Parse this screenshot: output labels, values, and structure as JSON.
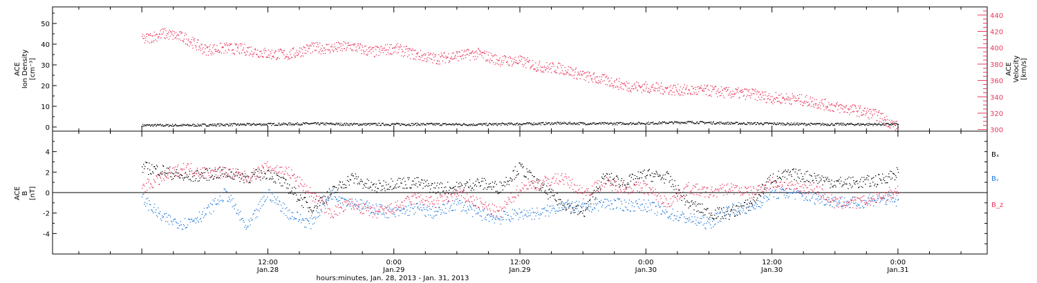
{
  "chart_data": [
    {
      "type": "scatter",
      "panel": "top",
      "ylabel_left": [
        "ACE",
        "Ion Density",
        "[cm⁻³]"
      ],
      "ylabel_right": [
        "ACE",
        "Velocity",
        "[km/s]"
      ],
      "ylim_left": [
        -2,
        58
      ],
      "yticks_left": [
        "0",
        "10",
        "20",
        "30",
        "40",
        "50"
      ],
      "ylim_right": [
        298,
        450
      ],
      "yticks_right": [
        "300",
        "320",
        "340",
        "360",
        "380",
        "400",
        "420",
        "440"
      ],
      "series": [
        {
          "axis": "left",
          "color": "#000000",
          "x_hours": [
            0,
            4,
            8,
            12,
            16,
            20,
            24,
            28,
            32,
            36,
            40,
            44,
            48,
            52,
            56,
            60,
            64,
            68,
            72
          ],
          "values": [
            1,
            1,
            1.3,
            1.5,
            1.8,
            1.5,
            1.5,
            1.5,
            1.4,
            1.7,
            2,
            1.8,
            2,
            2.5,
            2,
            1.8,
            1.5,
            1.5,
            1.5
          ]
        },
        {
          "axis": "right",
          "color": "#e8355c",
          "x_hours": [
            0,
            2,
            4,
            6,
            8,
            10,
            12,
            14,
            16,
            18,
            20,
            22,
            24,
            26,
            28,
            30,
            32,
            34,
            36,
            38,
            40,
            42,
            44,
            46,
            48,
            50,
            52,
            54,
            56,
            58,
            60,
            62,
            64,
            66,
            68,
            70,
            72
          ],
          "values": [
            410,
            418,
            413,
            398,
            400,
            398,
            393,
            392,
            400,
            400,
            402,
            395,
            400,
            392,
            387,
            391,
            393,
            385,
            384,
            377,
            375,
            366,
            361,
            354,
            352,
            350,
            348,
            348,
            345,
            344,
            339,
            338,
            334,
            328,
            324,
            318,
            303
          ]
        }
      ]
    },
    {
      "type": "scatter",
      "panel": "bottom",
      "ylabel": [
        "ACE",
        "B",
        "[nT]"
      ],
      "ylim": [
        -6,
        6
      ],
      "yticks": [
        "-4",
        "-2",
        "0",
        "2",
        "4"
      ],
      "zero_line": true,
      "legend": [
        "Bₓ",
        "Bᵧ",
        "B_z"
      ],
      "series": [
        {
          "name": "Bₓ",
          "color": "#000000",
          "x_hours": [
            0,
            2,
            4,
            6,
            8,
            10,
            12,
            14,
            16,
            18,
            20,
            22,
            24,
            26,
            28,
            30,
            32,
            34,
            36,
            38,
            40,
            42,
            44,
            46,
            48,
            50,
            52,
            54,
            56,
            58,
            60,
            62,
            64,
            66,
            68,
            70,
            72
          ],
          "values": [
            2.5,
            2.2,
            1.5,
            1.8,
            2,
            1.5,
            2,
            0.5,
            -1.5,
            0,
            1.5,
            0.5,
            1,
            1,
            0.5,
            0.5,
            1,
            0.5,
            2.5,
            0.5,
            -1,
            -2,
            1.5,
            1,
            1.8,
            1.5,
            -1,
            -2,
            -2,
            -1,
            1.5,
            1.8,
            1.5,
            1,
            1,
            1.2,
            2
          ]
        },
        {
          "name": "Bᵧ",
          "color": "#1f77d9",
          "x_hours": [
            0,
            2,
            4,
            6,
            8,
            10,
            12,
            14,
            16,
            18,
            20,
            22,
            24,
            26,
            28,
            30,
            32,
            34,
            36,
            38,
            40,
            42,
            44,
            46,
            48,
            50,
            52,
            54,
            56,
            58,
            60,
            62,
            64,
            66,
            68,
            70,
            72
          ],
          "values": [
            -0.5,
            -2.5,
            -3,
            -2,
            0,
            -3.5,
            0,
            -2,
            -3,
            0,
            -1,
            -1.5,
            -2,
            -1.5,
            -2,
            -1,
            -2,
            -2.5,
            -2,
            -2,
            -1.2,
            -1.5,
            -1,
            -1.2,
            -1.2,
            -2,
            -2.5,
            -3,
            -1.5,
            -1.5,
            0,
            0,
            -0.5,
            -0.8,
            -1,
            -0.6,
            -0.8
          ]
        },
        {
          "name": "B_z",
          "color": "#e8355c",
          "x_hours": [
            0,
            2,
            4,
            6,
            8,
            10,
            12,
            14,
            16,
            18,
            20,
            22,
            24,
            26,
            28,
            30,
            32,
            34,
            36,
            38,
            40,
            42,
            44,
            46,
            48,
            50,
            52,
            54,
            56,
            58,
            60,
            62,
            64,
            66,
            68,
            70,
            72
          ],
          "values": [
            0.5,
            1.5,
            2.5,
            2,
            2,
            1.5,
            2.5,
            2,
            0,
            -2,
            -1,
            -2,
            -1.5,
            -0.5,
            -1,
            0,
            -1,
            -2,
            0.5,
            1,
            1.5,
            0,
            1,
            0.5,
            0.5,
            -1,
            0.5,
            0,
            0.5,
            0,
            1,
            0.5,
            0.5,
            -1,
            -1,
            -0.5,
            0.3
          ]
        }
      ]
    }
  ],
  "x_axis": {
    "range_hours": [
      -8.5,
      80.5
    ],
    "ticks": [
      {
        "hours": 12,
        "time": "12:00",
        "date": "Jan.28"
      },
      {
        "hours": 24,
        "time": "0:00",
        "date": "Jan.29"
      },
      {
        "hours": 36,
        "time": "12:00",
        "date": "Jan.29"
      },
      {
        "hours": 48,
        "time": "0:00",
        "date": "Jan.30"
      },
      {
        "hours": 60,
        "time": "12:00",
        "date": "Jan.30"
      },
      {
        "hours": 72,
        "time": "0:00",
        "date": "Jan.31"
      }
    ],
    "label": "hours:minutes, Jan. 28, 2013 - Jan. 31, 2013"
  }
}
